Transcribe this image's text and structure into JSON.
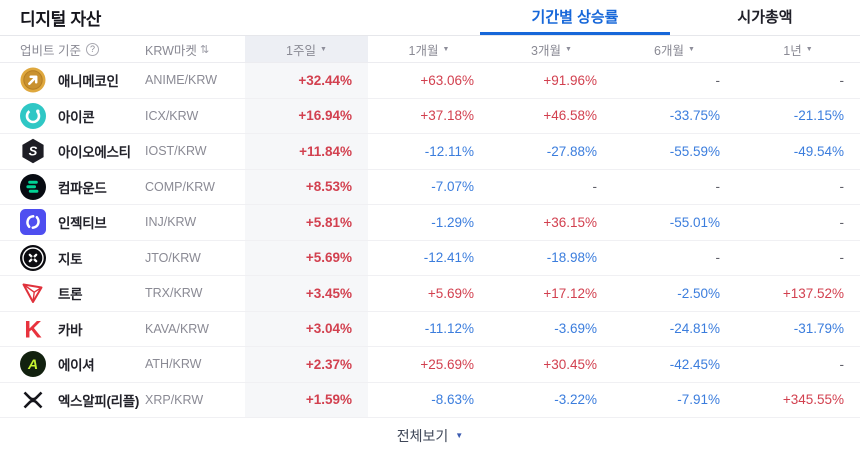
{
  "page": {
    "title": "디지털 자산"
  },
  "tabs": [
    {
      "label": "기간별 상승률",
      "active": true
    },
    {
      "label": "시가총액",
      "active": false
    }
  ],
  "table": {
    "header": {
      "basis_label": "업비트 기준",
      "help_icon": "question-mark-icon",
      "market_label": "KRW마켓",
      "sort_icon": "sort-arrows-icon",
      "period_columns": [
        "1주일",
        "1개월",
        "3개월",
        "6개월",
        "1년"
      ],
      "selected_period_index": 0
    },
    "rows": [
      {
        "name": "애니메코인",
        "pair": "ANIME/KRW",
        "icon": "anime-icon",
        "values": [
          "+32.44%",
          "+63.06%",
          "+91.96%",
          "-",
          "-"
        ]
      },
      {
        "name": "아이콘",
        "pair": "ICX/KRW",
        "icon": "icx-icon",
        "values": [
          "+16.94%",
          "+37.18%",
          "+46.58%",
          "-33.75%",
          "-21.15%"
        ]
      },
      {
        "name": "아이오에스티",
        "pair": "IOST/KRW",
        "icon": "iost-icon",
        "values": [
          "+11.84%",
          "-12.11%",
          "-27.88%",
          "-55.59%",
          "-49.54%"
        ]
      },
      {
        "name": "컴파운드",
        "pair": "COMP/KRW",
        "icon": "comp-icon",
        "values": [
          "+8.53%",
          "-7.07%",
          "-",
          "-",
          "-"
        ]
      },
      {
        "name": "인젝티브",
        "pair": "INJ/KRW",
        "icon": "inj-icon",
        "values": [
          "+5.81%",
          "-1.29%",
          "+36.15%",
          "-55.01%",
          "-"
        ]
      },
      {
        "name": "지토",
        "pair": "JTO/KRW",
        "icon": "jto-icon",
        "values": [
          "+5.69%",
          "-12.41%",
          "-18.98%",
          "-",
          "-"
        ]
      },
      {
        "name": "트론",
        "pair": "TRX/KRW",
        "icon": "trx-icon",
        "values": [
          "+3.45%",
          "+5.69%",
          "+17.12%",
          "-2.50%",
          "+137.52%"
        ]
      },
      {
        "name": "카바",
        "pair": "KAVA/KRW",
        "icon": "kava-icon",
        "values": [
          "+3.04%",
          "-11.12%",
          "-3.69%",
          "-24.81%",
          "-31.79%"
        ]
      },
      {
        "name": "에이셔",
        "pair": "ATH/KRW",
        "icon": "ath-icon",
        "values": [
          "+2.37%",
          "+25.69%",
          "+30.45%",
          "-42.45%",
          "-"
        ]
      },
      {
        "name": "엑스알피(리플)",
        "pair": "XRP/KRW",
        "icon": "xrp-icon",
        "values": [
          "+1.59%",
          "-8.63%",
          "-3.22%",
          "-7.91%",
          "+345.55%"
        ]
      }
    ]
  },
  "footer": {
    "view_all_label": "전체보기"
  },
  "colors": {
    "rise": "#d2404f",
    "fall": "#3b7ddd",
    "tab_active": "#1667d9",
    "selected_column_bg": "#f6f7f9",
    "selected_header_bg": "#edeff4",
    "view_all_arrow": "#3c5bb0"
  }
}
